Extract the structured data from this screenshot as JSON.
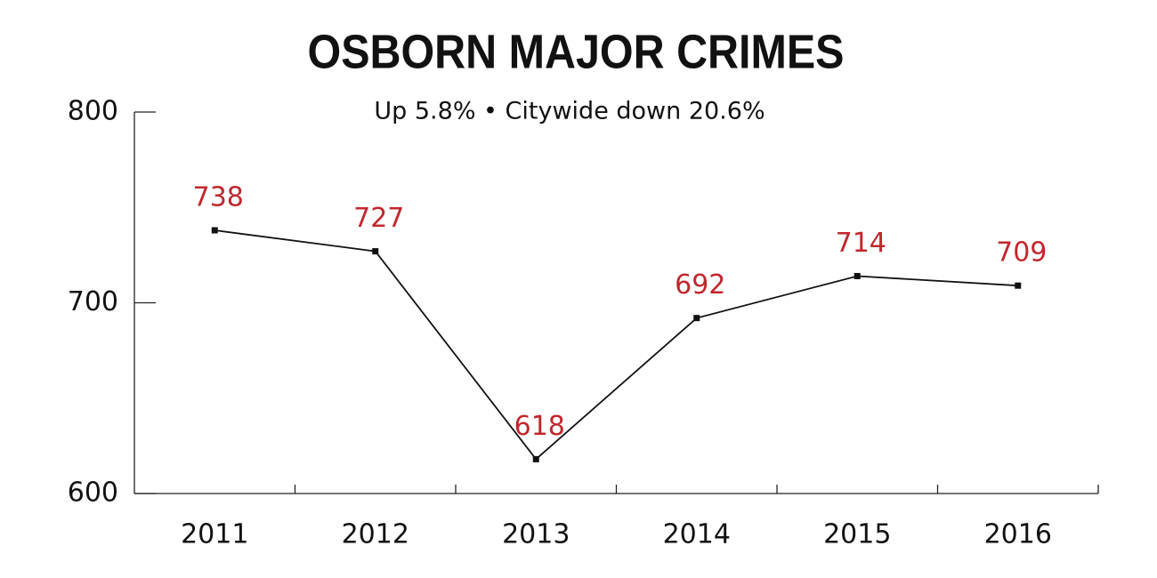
{
  "chart_data": {
    "type": "line",
    "title": "OSBORN MAJOR CRIMES",
    "subtitle": "Up 5.8% • Citywide down 20.6%",
    "categories": [
      "2011",
      "2012",
      "2013",
      "2014",
      "2015",
      "2016"
    ],
    "values": [
      738,
      727,
      618,
      692,
      714,
      709
    ],
    "color": "#111111",
    "label_color": "#c1272d",
    "ylim": [
      600,
      800
    ],
    "yticks": [
      600,
      700,
      800
    ]
  }
}
